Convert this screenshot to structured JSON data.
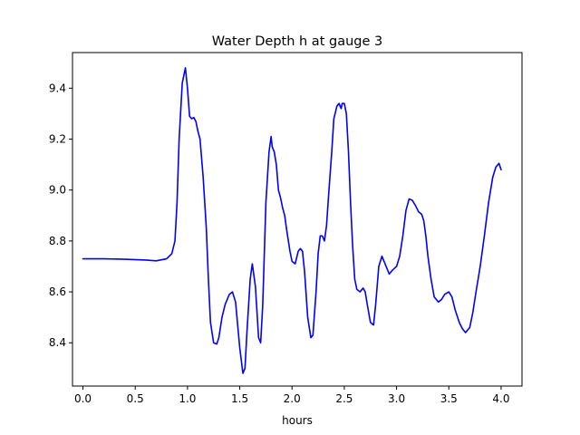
{
  "chart_data": {
    "type": "line",
    "title": "Water Depth h at gauge 3",
    "xlabel": "hours",
    "ylabel": "",
    "xlim": [
      -0.1,
      4.2
    ],
    "ylim": [
      8.23,
      9.54
    ],
    "xticks": [
      0.0,
      0.5,
      1.0,
      1.5,
      2.0,
      2.5,
      3.0,
      3.5,
      4.0
    ],
    "xtick_labels": [
      "0.0",
      "0.5",
      "1.0",
      "1.5",
      "2.0",
      "2.5",
      "3.0",
      "3.5",
      "4.0"
    ],
    "yticks": [
      8.4,
      8.6,
      8.8,
      9.0,
      9.2,
      9.4
    ],
    "ytick_labels": [
      "8.4",
      "8.6",
      "8.8",
      "9.0",
      "9.2",
      "9.4"
    ],
    "grid": false,
    "legend": "none",
    "series": [
      {
        "color": "#0000ff",
        "x": [
          0.0,
          0.2,
          0.4,
          0.6,
          0.7,
          0.8,
          0.85,
          0.88,
          0.9,
          0.92,
          0.95,
          0.98,
          1.0,
          1.02,
          1.04,
          1.06,
          1.08,
          1.1,
          1.12,
          1.15,
          1.18,
          1.2,
          1.22,
          1.25,
          1.28,
          1.3,
          1.33,
          1.36,
          1.4,
          1.43,
          1.46,
          1.5,
          1.53,
          1.55,
          1.57,
          1.6,
          1.62,
          1.65,
          1.68,
          1.7,
          1.72,
          1.75,
          1.78,
          1.8,
          1.81,
          1.83,
          1.85,
          1.87,
          1.89,
          1.91,
          1.93,
          1.95,
          1.98,
          2.0,
          2.03,
          2.06,
          2.08,
          2.1,
          2.12,
          2.15,
          2.18,
          2.2,
          2.23,
          2.25,
          2.27,
          2.29,
          2.31,
          2.33,
          2.35,
          2.38,
          2.4,
          2.43,
          2.45,
          2.47,
          2.48,
          2.5,
          2.52,
          2.54,
          2.56,
          2.58,
          2.6,
          2.62,
          2.65,
          2.68,
          2.7,
          2.72,
          2.75,
          2.78,
          2.8,
          2.83,
          2.86,
          2.9,
          2.93,
          2.96,
          3.0,
          3.03,
          3.06,
          3.09,
          3.12,
          3.15,
          3.18,
          3.21,
          3.24,
          3.26,
          3.28,
          3.3,
          3.33,
          3.36,
          3.4,
          3.43,
          3.46,
          3.5,
          3.53,
          3.56,
          3.6,
          3.63,
          3.66,
          3.7,
          3.73,
          3.76,
          3.8,
          3.84,
          3.88,
          3.92,
          3.95,
          3.98,
          4.0
        ],
        "values": [
          8.73,
          8.73,
          8.728,
          8.725,
          8.722,
          8.73,
          8.75,
          8.8,
          8.95,
          9.2,
          9.42,
          9.48,
          9.4,
          9.29,
          9.28,
          9.285,
          9.27,
          9.23,
          9.2,
          9.05,
          8.85,
          8.65,
          8.48,
          8.4,
          8.395,
          8.42,
          8.5,
          8.55,
          8.59,
          8.6,
          8.56,
          8.38,
          8.28,
          8.3,
          8.45,
          8.65,
          8.71,
          8.62,
          8.42,
          8.4,
          8.55,
          8.95,
          9.15,
          9.21,
          9.17,
          9.15,
          9.1,
          9.0,
          8.97,
          8.93,
          8.9,
          8.84,
          8.76,
          8.72,
          8.71,
          8.76,
          8.77,
          8.76,
          8.68,
          8.5,
          8.42,
          8.43,
          8.6,
          8.75,
          8.82,
          8.82,
          8.8,
          8.86,
          8.98,
          9.15,
          9.28,
          9.33,
          9.34,
          9.32,
          9.34,
          9.34,
          9.3,
          9.15,
          8.95,
          8.78,
          8.65,
          8.61,
          8.6,
          8.615,
          8.6,
          8.55,
          8.48,
          8.47,
          8.55,
          8.7,
          8.74,
          8.7,
          8.67,
          8.685,
          8.7,
          8.74,
          8.82,
          8.92,
          8.965,
          8.96,
          8.94,
          8.915,
          8.905,
          8.88,
          8.82,
          8.74,
          8.65,
          8.58,
          8.56,
          8.57,
          8.59,
          8.6,
          8.58,
          8.53,
          8.48,
          8.455,
          8.44,
          8.46,
          8.52,
          8.6,
          8.7,
          8.82,
          8.95,
          9.05,
          9.09,
          9.105,
          9.08
        ]
      }
    ]
  }
}
